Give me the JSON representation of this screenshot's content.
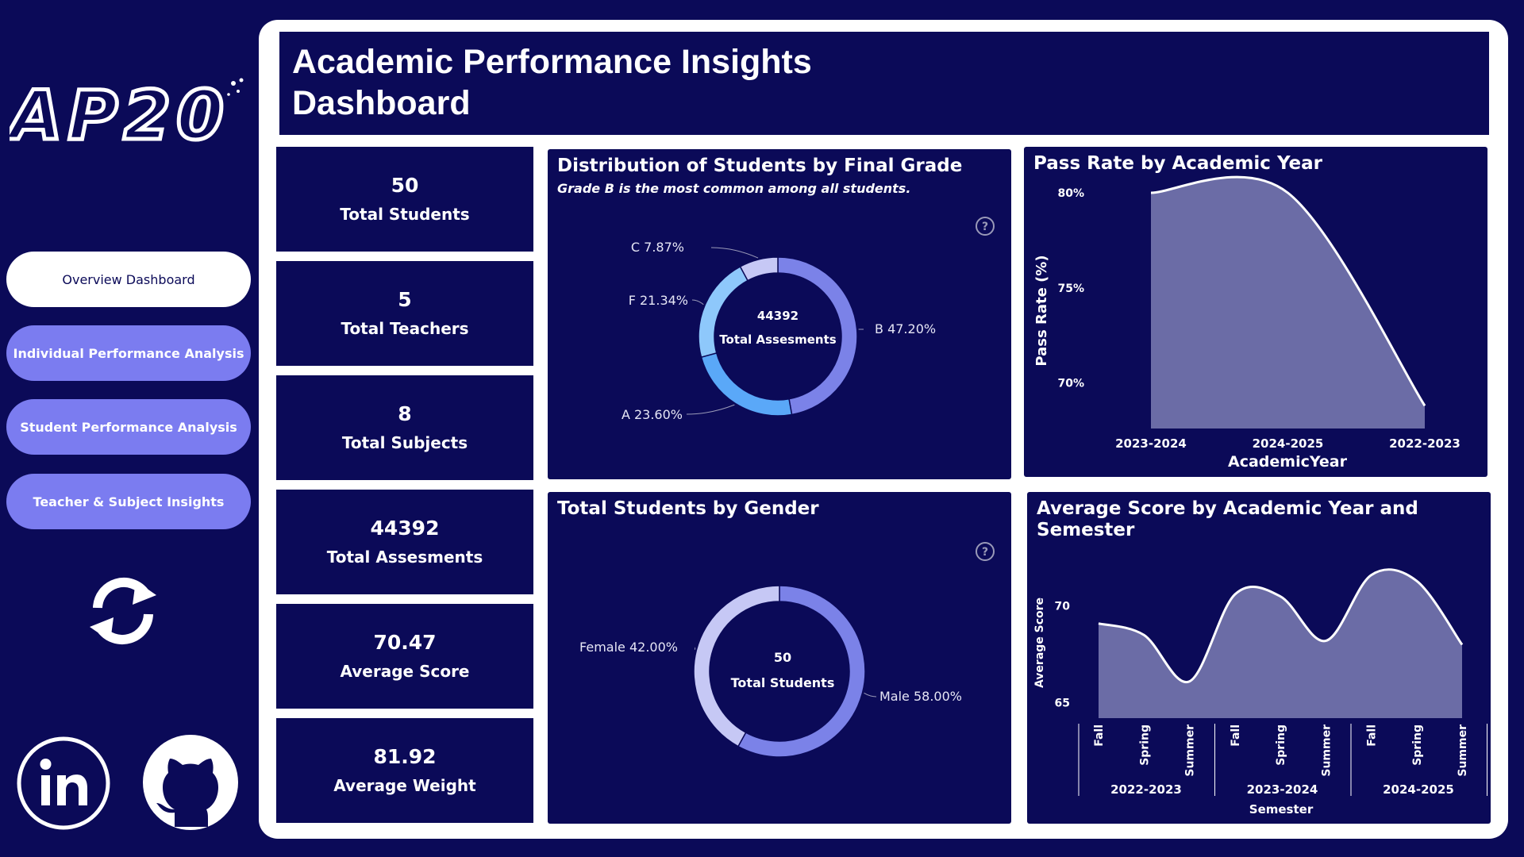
{
  "header": {
    "title": "Academic Performance Insights\nDashboard"
  },
  "logo": {
    "text": "AP20"
  },
  "nav": {
    "items": [
      {
        "label": "Overview Dashboard",
        "active": true
      },
      {
        "label": "Individual Performance Analysis",
        "active": false
      },
      {
        "label": "Student Performance Analysis",
        "active": false
      },
      {
        "label": "Teacher & Subject Insights",
        "active": false
      }
    ]
  },
  "kpis": [
    {
      "value": "50",
      "label": "Total Students"
    },
    {
      "value": "5",
      "label": "Total Teachers"
    },
    {
      "value": "8",
      "label": "Total Subjects"
    },
    {
      "value": "44392",
      "label": "Total Assesments"
    },
    {
      "value": "70.47",
      "label": "Average Score"
    },
    {
      "value": "81.92",
      "label": "Average Weight"
    }
  ],
  "grade_card": {
    "title": "Distribution of Students by Final Grade",
    "subtitle": "Grade B is the most common among all students.",
    "center_value": "44392",
    "center_label": "Total Assesments"
  },
  "gender_card": {
    "title": "Total Students by Gender",
    "center_value": "50",
    "center_label": "Total Students"
  },
  "pass_card": {
    "title": "Pass Rate by Academic Year"
  },
  "score_card": {
    "title": "Average Score by Academic Year and\nSemester"
  },
  "colors": {
    "background": "#0b0a58",
    "panel": "#ffffff",
    "nav_button": "#7b7cf0",
    "area_fill": "#6b6ca6",
    "grade_B": "#7b82e8",
    "grade_A": "#5aa8f8",
    "grade_F": "#8ec8fb",
    "grade_C": "#c6c8f5",
    "male": "#7b82e8",
    "female": "#c6c8f5"
  },
  "icons": [
    "refresh-icon",
    "linkedin-icon",
    "github-icon",
    "help-icon"
  ],
  "chart_data": [
    {
      "type": "pie",
      "title": "Distribution of Students by Final Grade",
      "slices": [
        {
          "label": "B",
          "value": 47.2,
          "text": "B 47.20%",
          "color": "#7b82e8"
        },
        {
          "label": "A",
          "value": 23.6,
          "text": "A 23.60%",
          "color": "#5aa8f8"
        },
        {
          "label": "F",
          "value": 21.34,
          "text": "F 21.34%",
          "color": "#8ec8fb"
        },
        {
          "label": "C",
          "value": 7.87,
          "text": "C 7.87%",
          "color": "#c6c8f5"
        }
      ]
    },
    {
      "type": "pie",
      "title": "Total Students by Gender",
      "slices": [
        {
          "label": "Male",
          "value": 58.0,
          "text": "Male 58.00%",
          "color": "#7b82e8"
        },
        {
          "label": "Female",
          "value": 42.0,
          "text": "Female 42.00%",
          "color": "#c6c8f5"
        }
      ]
    },
    {
      "type": "area",
      "title": "Pass Rate by Academic Year",
      "xlabel": "AcademicYear",
      "ylabel": "Pass Rate (%)",
      "categories": [
        "2023-2024",
        "2024-2025",
        "2022-2023"
      ],
      "values": [
        80,
        80,
        68.8
      ],
      "ylim": [
        67.6,
        80
      ],
      "yticks": [
        70,
        75,
        80
      ],
      "ytick_labels": [
        "70%",
        "75%",
        "80%"
      ]
    },
    {
      "type": "area",
      "title": "Average Score by Academic Year and Semester",
      "xlabel": "Semester",
      "ylabel": "Average Score",
      "categories": [
        "Fall",
        "Spring",
        "Summer",
        "Fall",
        "Spring",
        "Summer",
        "Fall",
        "Spring",
        "Summer"
      ],
      "groups": [
        "2022-2023",
        "2023-2024",
        "2024-2025"
      ],
      "values": [
        69.1,
        68.5,
        66.1,
        70.6,
        70.5,
        68.2,
        71.6,
        71.3,
        68.0
      ],
      "ylim": [
        64.2,
        72
      ],
      "yticks": [
        65,
        70
      ],
      "ytick_labels": [
        "65",
        "70"
      ]
    }
  ]
}
